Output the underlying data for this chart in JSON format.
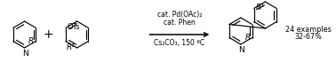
{
  "bg_color": "#ffffff",
  "text_color": "#000000",
  "condition_line1": "cat. Pd(OAc)₂",
  "condition_line2": "cat. Phen",
  "condition_line3": "Cs₂CO₃, 150 ºC",
  "yield_line1": "24 examples",
  "yield_line2": "32-67%",
  "figsize": [
    3.78,
    0.79
  ],
  "dpi": 100,
  "ring_r": 15,
  "lw": 0.85
}
